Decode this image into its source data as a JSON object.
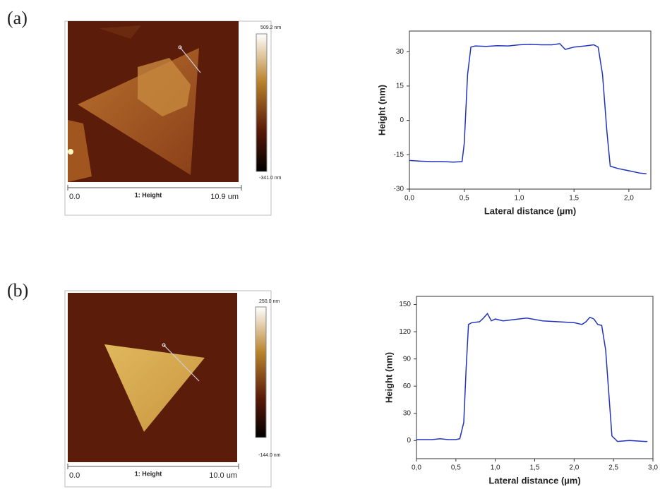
{
  "panel_labels": [
    "(a)",
    "(b)"
  ],
  "afm_images": [
    {
      "max_label": "509.2 nm",
      "min_label": "-341.0 nm",
      "scale_start": "0.0",
      "channel": "1: Height",
      "scale_end": "10.9 um"
    },
    {
      "max_label": "250.0 nm",
      "min_label": "-144.0 nm",
      "scale_start": "0.0",
      "channel": "1: Height",
      "scale_end": "10.0 um"
    }
  ],
  "chart_data": [
    {
      "type": "line",
      "x_label": "Lateral distance (µm)",
      "y_label": "Height (nm)",
      "color": "#2233bb",
      "x": [
        0,
        0.1,
        0.2,
        0.3,
        0.4,
        0.48,
        0.5,
        0.53,
        0.56,
        0.6,
        0.7,
        0.8,
        0.9,
        1.0,
        1.1,
        1.2,
        1.3,
        1.37,
        1.42,
        1.5,
        1.6,
        1.68,
        1.72,
        1.76,
        1.8,
        1.83,
        1.9,
        2.0,
        2.1,
        2.16
      ],
      "values": [
        -17.5,
        -17.8,
        -18,
        -18,
        -18.2,
        -18,
        -10,
        20,
        32,
        32.5,
        32.3,
        32.6,
        32.5,
        33,
        33.2,
        33,
        33,
        33.5,
        31,
        32,
        32.5,
        33,
        32,
        20,
        -5,
        -20,
        -21,
        -22,
        -23,
        -23.3
      ],
      "xlim": [
        0,
        2.2
      ],
      "ylim": [
        -30,
        39
      ],
      "xticks": [
        {
          "value": 0,
          "label": "0,0"
        },
        {
          "value": 0.5,
          "label": "0,5"
        },
        {
          "value": 1,
          "label": "1,0"
        },
        {
          "value": 1.5,
          "label": "1,5"
        },
        {
          "value": 2,
          "label": "2,0"
        }
      ],
      "yticks": [
        -30,
        -15,
        0,
        15,
        30
      ]
    },
    {
      "type": "line",
      "x_label": "Lateral distance (µm)",
      "y_label": "Height (nm)",
      "color": "#2233bb",
      "x": [
        0,
        0.2,
        0.3,
        0.4,
        0.5,
        0.55,
        0.6,
        0.63,
        0.66,
        0.7,
        0.8,
        0.85,
        0.9,
        0.95,
        1.0,
        1.1,
        1.2,
        1.4,
        1.6,
        1.8,
        2.0,
        2.1,
        2.15,
        2.2,
        2.25,
        2.3,
        2.35,
        2.4,
        2.45,
        2.48,
        2.55,
        2.7,
        2.9,
        2.93
      ],
      "values": [
        1,
        1,
        2,
        1,
        1,
        2,
        20,
        80,
        128,
        130,
        131,
        135,
        140,
        132,
        134,
        132,
        133,
        135,
        132,
        131,
        130,
        128,
        131,
        136,
        134,
        128,
        127,
        100,
        40,
        5,
        -1,
        0,
        -1,
        -1
      ],
      "xlim": [
        0,
        3.0
      ],
      "ylim": [
        -20,
        159
      ],
      "xticks": [
        {
          "value": 0,
          "label": "0,0"
        },
        {
          "value": 0.5,
          "label": "0,5"
        },
        {
          "value": 1,
          "label": "1,0"
        },
        {
          "value": 1.5,
          "label": "1,5"
        },
        {
          "value": 2,
          "label": "2,0"
        },
        {
          "value": 2.5,
          "label": "2,5"
        },
        {
          "value": 3,
          "label": "3,0"
        }
      ],
      "yticks": [
        0,
        30,
        60,
        90,
        120,
        150
      ]
    }
  ]
}
